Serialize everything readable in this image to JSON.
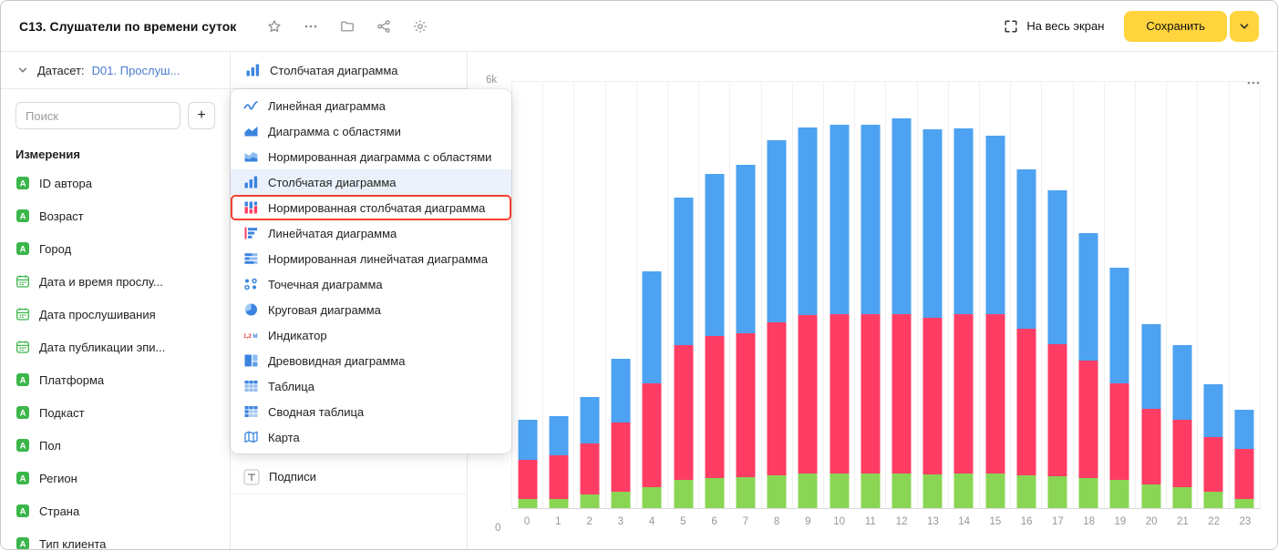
{
  "colors": {
    "accent_yellow": "#ffd43d",
    "annotation_red": "#f4402f",
    "link_blue": "#4a7bd0",
    "icon_blue": "#3a84e0",
    "selected_bg": "#ebf1fb",
    "field_green": "#3bb64a",
    "series_blue": "#4da2f1",
    "series_pink": "#ff3d64",
    "series_green": "#8ad554"
  },
  "header": {
    "title": "C13. Слушатели по времени суток",
    "icon_buttons": [
      "favorite-icon",
      "more-icon",
      "folder-icon",
      "share-icon",
      "settings-icon"
    ],
    "fullscreen_label": "На весь экран",
    "save_label": "Сохранить"
  },
  "sidebar": {
    "dataset_label": "Датасет:",
    "dataset_name": "D01. Прослуш...",
    "search_placeholder": "Поиск",
    "add_button_label": "+",
    "section_title": "Измерения",
    "fields": [
      {
        "name": "ID автора",
        "type": "string"
      },
      {
        "name": "Возраст",
        "type": "string"
      },
      {
        "name": "Город",
        "type": "string"
      },
      {
        "name": "Дата и время прослу...",
        "type": "date"
      },
      {
        "name": "Дата прослушивания",
        "type": "date"
      },
      {
        "name": "Дата публикации эпи...",
        "type": "date"
      },
      {
        "name": "Платформа",
        "type": "string"
      },
      {
        "name": "Подкаст",
        "type": "string"
      },
      {
        "name": "Пол",
        "type": "string"
      },
      {
        "name": "Регион",
        "type": "string"
      },
      {
        "name": "Страна",
        "type": "string"
      },
      {
        "name": "Тип клиента",
        "type": "string"
      }
    ]
  },
  "chart_type_selector": {
    "selected_label": "Столбчатая диаграмма"
  },
  "chart_type_menu": {
    "items": [
      {
        "label": "Линейная диаграмма",
        "icon": "line-chart-icon",
        "selected": false,
        "annotated": false
      },
      {
        "label": "Диаграмма с областями",
        "icon": "area-chart-icon",
        "selected": false,
        "annotated": false
      },
      {
        "label": "Нормированная диаграмма с областями",
        "icon": "area-normalized-icon",
        "selected": false,
        "annotated": false
      },
      {
        "label": "Столбчатая диаграмма",
        "icon": "bar-chart-icon",
        "selected": true,
        "annotated": false
      },
      {
        "label": "Нормированная столбчатая диаграмма",
        "icon": "bar-normalized-icon",
        "selected": false,
        "annotated": true
      },
      {
        "label": "Линейчатая диаграмма",
        "icon": "bar-horizontal-icon",
        "selected": false,
        "annotated": false
      },
      {
        "label": "Нормированная линейчатая диаграмма",
        "icon": "bar-horizontal-normalized-icon",
        "selected": false,
        "annotated": false
      },
      {
        "label": "Точечная диаграмма",
        "icon": "scatter-chart-icon",
        "selected": false,
        "annotated": false
      },
      {
        "label": "Круговая диаграмма",
        "icon": "pie-chart-icon",
        "selected": false,
        "annotated": false
      },
      {
        "label": "Индикатор",
        "icon": "indicator-icon",
        "selected": false,
        "annotated": false
      },
      {
        "label": "Древовидная диаграмма",
        "icon": "treemap-icon",
        "selected": false,
        "annotated": false
      },
      {
        "label": "Таблица",
        "icon": "table-icon",
        "selected": false,
        "annotated": false
      },
      {
        "label": "Сводная таблица",
        "icon": "pivot-table-icon",
        "selected": false,
        "annotated": false
      },
      {
        "label": "Карта",
        "icon": "map-icon",
        "selected": false,
        "annotated": false
      }
    ]
  },
  "settings_panel": {
    "labels_label": "Подписи"
  },
  "chart_data": {
    "type": "bar",
    "stacked": true,
    "title": "",
    "xlabel": "",
    "ylabel": "",
    "legend": "none",
    "grid": "vertical",
    "ylim": [
      0,
      6000
    ],
    "ytick_labels": [
      "0",
      "6k"
    ],
    "categories": [
      "0",
      "1",
      "2",
      "3",
      "4",
      "5",
      "6",
      "7",
      "8",
      "9",
      "10",
      "11",
      "12",
      "13",
      "14",
      "15",
      "16",
      "17",
      "18",
      "19",
      "20",
      "21",
      "22",
      "23"
    ],
    "series": [
      {
        "name": "green",
        "color": "#8ad554",
        "values": [
          130,
          130,
          190,
          230,
          300,
          395,
          420,
          435,
          460,
          485,
          485,
          485,
          485,
          470,
          485,
          485,
          460,
          445,
          420,
          395,
          330,
          295,
          230,
          130
        ]
      },
      {
        "name": "pink",
        "color": "#ff3d64",
        "values": [
          550,
          610,
          715,
          980,
          1460,
          1905,
          2000,
          2025,
          2150,
          2235,
          2245,
          2245,
          2245,
          2210,
          2245,
          2245,
          2070,
          1865,
          1660,
          1365,
          1070,
          955,
          765,
          700
        ]
      },
      {
        "name": "blue",
        "color": "#4da2f1",
        "values": [
          570,
          560,
          665,
          890,
          1580,
          2070,
          2280,
          2370,
          2570,
          2640,
          2670,
          2670,
          2760,
          2660,
          2610,
          2510,
          2240,
          2160,
          1790,
          1630,
          1190,
          1050,
          745,
          550
        ]
      }
    ]
  }
}
